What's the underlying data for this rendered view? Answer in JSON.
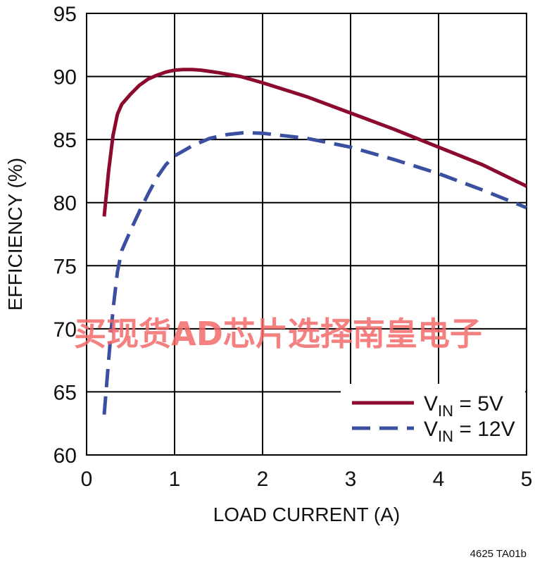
{
  "chart_data": {
    "type": "line",
    "title": "",
    "xlabel": "LOAD CURRENT (A)",
    "ylabel": "EFFICIENCY (%)",
    "xlim": [
      0,
      5
    ],
    "ylim": [
      60,
      95
    ],
    "xticks": [
      0,
      1,
      2,
      3,
      4,
      5
    ],
    "yticks": [
      60,
      65,
      70,
      75,
      80,
      85,
      90,
      95
    ],
    "grid": true,
    "legend_position": "bottom-right",
    "series": [
      {
        "name": "VIN = 5V",
        "legend_main": "V",
        "legend_sub": "IN",
        "legend_rest": " = 5V",
        "color": "#8b0a2e",
        "style": "solid",
        "x": [
          0.2,
          0.25,
          0.3,
          0.35,
          0.4,
          0.5,
          0.6,
          0.7,
          0.8,
          0.9,
          1.0,
          1.1,
          1.2,
          1.3,
          1.4,
          1.5,
          1.75,
          2.0,
          2.5,
          3.0,
          3.5,
          4.0,
          4.5,
          5.0
        ],
        "y": [
          78.9,
          82.5,
          85.3,
          87.0,
          87.8,
          88.6,
          89.3,
          89.8,
          90.1,
          90.35,
          90.5,
          90.55,
          90.55,
          90.5,
          90.4,
          90.3,
          90.0,
          89.5,
          88.4,
          87.1,
          85.8,
          84.4,
          83.0,
          81.3
        ]
      },
      {
        "name": "VIN = 12V",
        "legend_main": "V",
        "legend_sub": "IN",
        "legend_rest": " = 12V",
        "color": "#3a4fa0",
        "style": "dashed",
        "x": [
          0.2,
          0.25,
          0.3,
          0.35,
          0.4,
          0.5,
          0.6,
          0.7,
          0.8,
          0.9,
          1.0,
          1.2,
          1.4,
          1.6,
          1.8,
          2.0,
          2.5,
          3.0,
          3.5,
          4.0,
          4.5,
          5.0
        ],
        "y": [
          63.2,
          67.5,
          71.5,
          74.5,
          76.2,
          77.8,
          79.3,
          80.7,
          82.0,
          83.0,
          83.7,
          84.5,
          85.1,
          85.4,
          85.55,
          85.5,
          85.1,
          84.4,
          83.4,
          82.3,
          81.0,
          79.6
        ]
      }
    ]
  },
  "watermark": "买现货AD芯片选择南皇电子",
  "figure_id": "4625 TA01b"
}
